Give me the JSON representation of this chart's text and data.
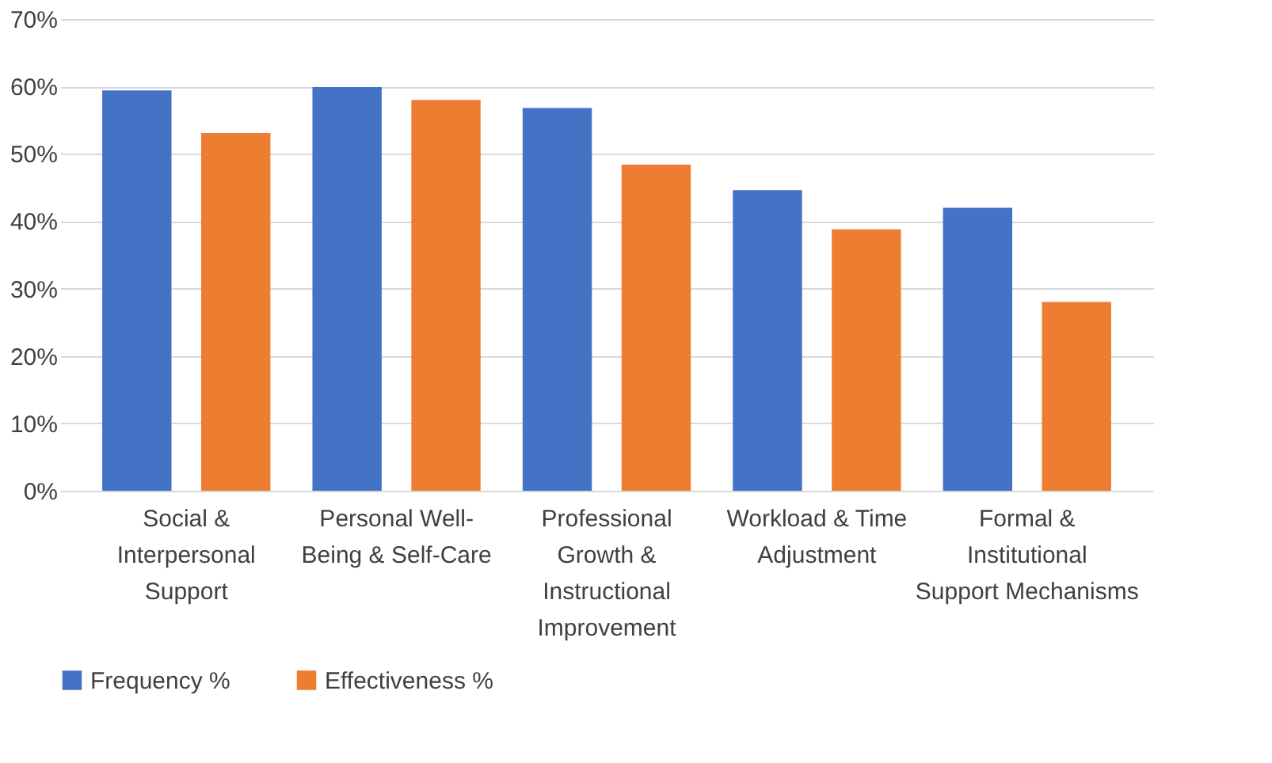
{
  "chart_data": {
    "type": "bar",
    "categories": [
      "Social & Interpersonal Support",
      "Personal Well-Being & Self-Care",
      "Professional Growth & Instructional Improvement",
      "Workload & Time Adjustment",
      "Formal & Institutional Support Mechanisms"
    ],
    "series": [
      {
        "name": "Frequency %",
        "color": "#4472c4",
        "values": [
          59.4,
          59.9,
          56.8,
          44.6,
          42.0
        ]
      },
      {
        "name": "Effectiveness %",
        "color": "#ed7d31",
        "values": [
          53.1,
          58.0,
          48.4,
          38.8,
          28.0
        ]
      }
    ],
    "ylim": [
      0,
      70
    ],
    "yticks": [
      {
        "value": 0,
        "label": "0%"
      },
      {
        "value": 10,
        "label": "10%"
      },
      {
        "value": 20,
        "label": "20%"
      },
      {
        "value": 30,
        "label": "30%"
      },
      {
        "value": 40,
        "label": "40%"
      },
      {
        "value": 50,
        "label": "50%"
      },
      {
        "value": 60,
        "label": "60%"
      },
      {
        "value": 70,
        "label": "70%"
      }
    ],
    "grid": "y",
    "legend": "bottom"
  }
}
